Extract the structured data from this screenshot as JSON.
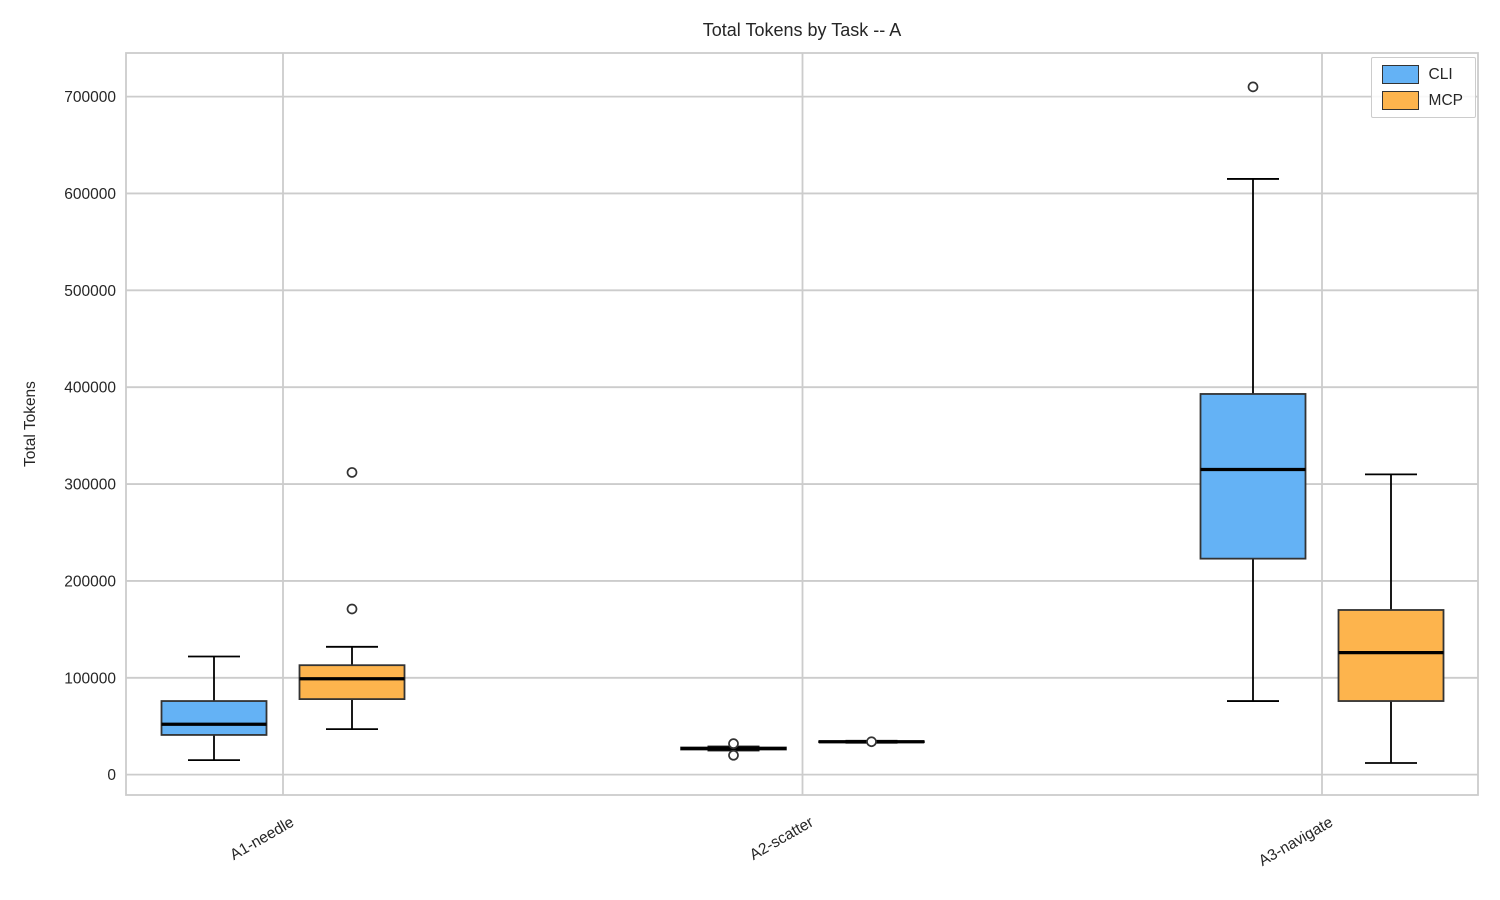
{
  "chart_data": {
    "type": "boxplot",
    "title": "Total Tokens by Task -- A",
    "ylabel": "Total Tokens",
    "xlabel": "",
    "categories": [
      "A1-needle",
      "A2-scatter",
      "A3-navigate"
    ],
    "series": [
      {
        "name": "CLI",
        "color": "#64B2F5",
        "boxes": [
          {
            "low": 15000,
            "q1": 41000,
            "median": 52000,
            "q3": 76000,
            "high": 122000,
            "outliers": []
          },
          {
            "low": 25000,
            "q1": 26000,
            "median": 27000,
            "q3": 28000,
            "high": 29000,
            "outliers": [
              32000,
              20000
            ]
          },
          {
            "low": 76000,
            "q1": 223000,
            "median": 315000,
            "q3": 393000,
            "high": 615000,
            "outliers": [
              710000
            ]
          }
        ]
      },
      {
        "name": "MCP",
        "color": "#FDB44D",
        "boxes": [
          {
            "low": 47000,
            "q1": 78000,
            "median": 99000,
            "q3": 113000,
            "high": 132000,
            "outliers": [
              171000,
              312000
            ]
          },
          {
            "low": 33000,
            "q1": 33500,
            "median": 34000,
            "q3": 34500,
            "high": 35000,
            "outliers": [
              34000
            ]
          },
          {
            "low": 12000,
            "q1": 76000,
            "median": 126000,
            "q3": 170000,
            "high": 310000,
            "outliers": []
          }
        ]
      }
    ],
    "yticks": [
      0,
      100000,
      200000,
      300000,
      400000,
      500000,
      600000,
      700000
    ],
    "ylim": [
      -21000,
      745000
    ],
    "grid": true,
    "legend_position": "upper right",
    "colors": {
      "grid": "#cccccc",
      "spine": "#cccccc",
      "box_edge": "#333333",
      "median": "#000000",
      "whisker": "#000000",
      "text": "#262626"
    }
  }
}
